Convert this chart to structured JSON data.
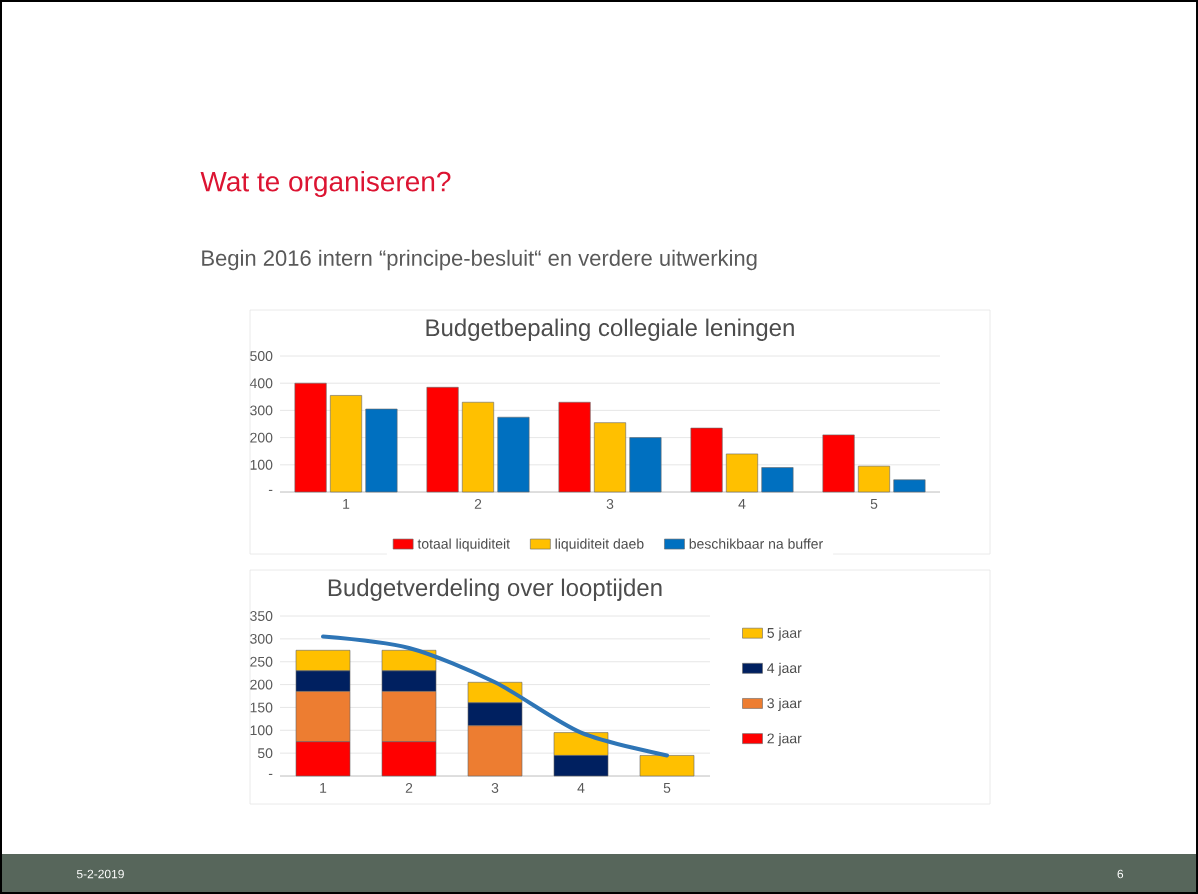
{
  "chart_data": [
    {
      "type": "bar",
      "title": "Budgetbepaling collegiale leningen",
      "categories": [
        "1",
        "2",
        "3",
        "4",
        "5"
      ],
      "series": [
        {
          "name": "totaal liquiditeit",
          "color": "#ff0000",
          "values": [
            400,
            385,
            330,
            235,
            210
          ]
        },
        {
          "name": "liquiditeit daeb",
          "color": "#ffc000",
          "values": [
            355,
            330,
            255,
            140,
            95
          ]
        },
        {
          "name": "beschikbaar na buffer",
          "color": "#0070c0",
          "values": [
            305,
            275,
            200,
            90,
            45
          ]
        }
      ],
      "ylim": [
        0,
        500
      ],
      "yticks": [
        {
          "value": 0,
          "label": "-"
        },
        100,
        200,
        300,
        400,
        500
      ],
      "grid": "y",
      "legend": "bottom",
      "annotations": [
        "Wat te organiseren?",
        "Begin 2016 intern “principe-besluit“ en verdere uitwerking",
        "5-2-2019",
        "6"
      ]
    },
    {
      "type": "bar",
      "title": "Budgetverdeling over looptijden",
      "stacked": true,
      "categories": [
        "1",
        "2",
        "3",
        "4",
        "5"
      ],
      "series": [
        {
          "name": "2 jaar",
          "color": "#ff0000",
          "values": [
            75,
            75,
            0,
            0,
            0
          ]
        },
        {
          "name": "3 jaar",
          "color": "#ed7d31",
          "values": [
            110,
            110,
            110,
            0,
            0
          ]
        },
        {
          "name": "4 jaar",
          "color": "#002060",
          "values": [
            45,
            45,
            50,
            45,
            0
          ]
        },
        {
          "name": "5 jaar",
          "color": "#ffc000",
          "values": [
            45,
            45,
            45,
            50,
            45
          ]
        },
        {
          "type": "line",
          "color": "#2e75b6",
          "values": [
            305,
            280,
            205,
            95,
            45
          ]
        }
      ],
      "ylim": [
        0,
        350
      ],
      "yticks": [
        {
          "value": 0,
          "label": "-"
        },
        50,
        100,
        150,
        200,
        250,
        300,
        350
      ],
      "grid": "y",
      "legend": "right"
    }
  ]
}
